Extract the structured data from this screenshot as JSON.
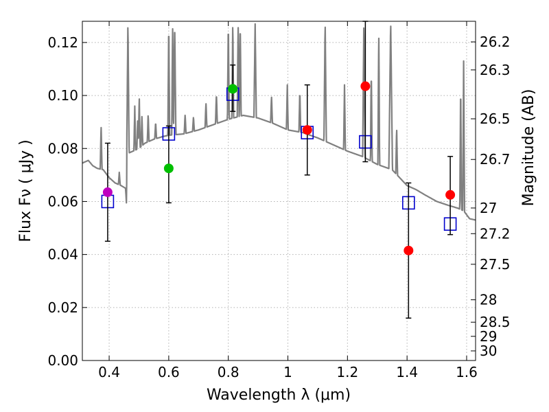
{
  "chart_data": {
    "type": "scatter",
    "xlabel": "Wavelength  λ (μm)",
    "ylabel": "Flux  Fν  ( μJy )",
    "ylabel_right": "Magnitude (AB)",
    "xlim": [
      0.31,
      1.63
    ],
    "ylim": [
      0.0,
      0.128
    ],
    "grid": true,
    "x_ticks": [
      {
        "value": 0.4,
        "label": "0.4"
      },
      {
        "value": 0.6,
        "label": "0.6"
      },
      {
        "value": 0.8,
        "label": "0.8"
      },
      {
        "value": 1.0,
        "label": "1"
      },
      {
        "value": 1.2,
        "label": "1.2"
      },
      {
        "value": 1.4,
        "label": "1.4"
      },
      {
        "value": 1.6,
        "label": "1.6"
      }
    ],
    "y_ticks": [
      {
        "value": 0.0,
        "label": "0.00"
      },
      {
        "value": 0.02,
        "label": "0.02"
      },
      {
        "value": 0.04,
        "label": "0.04"
      },
      {
        "value": 0.06,
        "label": "0.06"
      },
      {
        "value": 0.08,
        "label": "0.08"
      },
      {
        "value": 0.1,
        "label": "0.10"
      },
      {
        "value": 0.12,
        "label": "0.12"
      }
    ],
    "mag_ticks": [
      {
        "value": 26.2,
        "label": "26.2"
      },
      {
        "value": 26.3,
        "label": "26.3"
      },
      {
        "value": 26.5,
        "label": "26.5"
      },
      {
        "value": 26.7,
        "label": "26.7"
      },
      {
        "value": 27.0,
        "label": "27"
      },
      {
        "value": 27.2,
        "label": "27.2"
      },
      {
        "value": 27.5,
        "label": "27.5"
      },
      {
        "value": 28.0,
        "label": "28"
      },
      {
        "value": 28.5,
        "label": "28.5"
      },
      {
        "value": 29.0,
        "label": "29"
      },
      {
        "value": 30.0,
        "label": "30"
      }
    ],
    "observed": [
      {
        "x": 0.395,
        "y": 0.0635,
        "yerr_low": 0.045,
        "yerr_high": 0.082,
        "color": "#bf00bf"
      },
      {
        "x": 0.6,
        "y": 0.0725,
        "yerr_low": 0.0595,
        "yerr_high": 0.0885,
        "color": "#00bf00"
      },
      {
        "x": 0.815,
        "y": 0.1025,
        "yerr_low": 0.094,
        "yerr_high": 0.1115,
        "color": "#00bf00"
      },
      {
        "x": 1.065,
        "y": 0.087,
        "yerr_low": 0.07,
        "yerr_high": 0.104,
        "color": "#ff0000"
      },
      {
        "x": 1.26,
        "y": 0.1035,
        "yerr_low": 0.075,
        "yerr_high": 0.128,
        "color": "#ff0000"
      },
      {
        "x": 1.405,
        "y": 0.0415,
        "yerr_low": 0.016,
        "yerr_high": 0.067,
        "color": "#ff0000"
      },
      {
        "x": 1.545,
        "y": 0.0625,
        "yerr_low": 0.0475,
        "yerr_high": 0.077,
        "color": "#ff0000"
      }
    ],
    "model_points": [
      {
        "x": 0.395,
        "y": 0.06
      },
      {
        "x": 0.6,
        "y": 0.0855
      },
      {
        "x": 0.815,
        "y": 0.1005
      },
      {
        "x": 1.065,
        "y": 0.086
      },
      {
        "x": 1.26,
        "y": 0.0825
      },
      {
        "x": 1.405,
        "y": 0.0595
      },
      {
        "x": 1.545,
        "y": 0.0515
      }
    ],
    "sed_continuum": [
      [
        0.31,
        0.0745
      ],
      [
        0.33,
        0.0755
      ],
      [
        0.345,
        0.0735
      ],
      [
        0.36,
        0.0725
      ],
      [
        0.38,
        0.072
      ],
      [
        0.4,
        0.069
      ],
      [
        0.42,
        0.067
      ],
      [
        0.44,
        0.066
      ],
      [
        0.455,
        0.065
      ],
      [
        0.458,
        0.0595
      ],
      [
        0.46,
        0.078
      ],
      [
        0.48,
        0.079
      ],
      [
        0.5,
        0.08
      ],
      [
        0.52,
        0.082
      ],
      [
        0.55,
        0.0835
      ],
      [
        0.58,
        0.0845
      ],
      [
        0.6,
        0.085
      ],
      [
        0.65,
        0.0855
      ],
      [
        0.7,
        0.087
      ],
      [
        0.75,
        0.089
      ],
      [
        0.8,
        0.091
      ],
      [
        0.85,
        0.0925
      ],
      [
        0.9,
        0.0915
      ],
      [
        0.95,
        0.0895
      ],
      [
        1.0,
        0.087
      ],
      [
        1.05,
        0.086
      ],
      [
        1.1,
        0.084
      ],
      [
        1.15,
        0.0815
      ],
      [
        1.2,
        0.079
      ],
      [
        1.25,
        0.077
      ],
      [
        1.3,
        0.074
      ],
      [
        1.35,
        0.072
      ],
      [
        1.4,
        0.066
      ],
      [
        1.43,
        0.0645
      ],
      [
        1.46,
        0.0625
      ],
      [
        1.5,
        0.06
      ],
      [
        1.54,
        0.0585
      ],
      [
        1.57,
        0.0575
      ],
      [
        1.59,
        0.0565
      ],
      [
        1.61,
        0.0535
      ],
      [
        1.63,
        0.053
      ]
    ],
    "sed_lines": [
      {
        "x": 0.373,
        "peak": 0.089,
        "w": 0.003
      },
      {
        "x": 0.434,
        "peak": 0.071,
        "w": 0.003
      },
      {
        "x": 0.463,
        "peak": 0.128,
        "w": 0.004
      },
      {
        "x": 0.486,
        "peak": 0.096,
        "w": 0.003
      },
      {
        "x": 0.496,
        "peak": 0.092,
        "w": 0.003
      },
      {
        "x": 0.501,
        "peak": 0.1,
        "w": 0.003
      },
      {
        "x": 0.51,
        "peak": 0.092,
        "w": 0.003
      },
      {
        "x": 0.531,
        "peak": 0.093,
        "w": 0.003
      },
      {
        "x": 0.556,
        "peak": 0.09,
        "w": 0.003
      },
      {
        "x": 0.6,
        "peak": 0.128,
        "w": 0.003
      },
      {
        "x": 0.613,
        "peak": 0.128,
        "w": 0.003
      },
      {
        "x": 0.62,
        "peak": 0.128,
        "w": 0.004
      },
      {
        "x": 0.655,
        "peak": 0.093,
        "w": 0.003
      },
      {
        "x": 0.683,
        "peak": 0.092,
        "w": 0.003
      },
      {
        "x": 0.725,
        "peak": 0.0975,
        "w": 0.003
      },
      {
        "x": 0.76,
        "peak": 0.101,
        "w": 0.003
      },
      {
        "x": 0.8,
        "peak": 0.128,
        "w": 0.003
      },
      {
        "x": 0.815,
        "peak": 0.128,
        "w": 0.003
      },
      {
        "x": 0.833,
        "peak": 0.128,
        "w": 0.003
      },
      {
        "x": 0.84,
        "peak": 0.128,
        "w": 0.003
      },
      {
        "x": 0.89,
        "peak": 0.127,
        "w": 0.004
      },
      {
        "x": 0.945,
        "peak": 0.1,
        "w": 0.003
      },
      {
        "x": 0.998,
        "peak": 0.104,
        "w": 0.003
      },
      {
        "x": 1.04,
        "peak": 0.102,
        "w": 0.003
      },
      {
        "x": 1.125,
        "peak": 0.128,
        "w": 0.004
      },
      {
        "x": 1.19,
        "peak": 0.104,
        "w": 0.003
      },
      {
        "x": 1.255,
        "peak": 0.128,
        "w": 0.004
      },
      {
        "x": 1.28,
        "peak": 0.11,
        "w": 0.003
      },
      {
        "x": 1.305,
        "peak": 0.125,
        "w": 0.003
      },
      {
        "x": 1.345,
        "peak": 0.128,
        "w": 0.006
      },
      {
        "x": 1.365,
        "peak": 0.088,
        "w": 0.003
      },
      {
        "x": 1.58,
        "peak": 0.105,
        "w": 0.003
      },
      {
        "x": 1.59,
        "peak": 0.113,
        "w": 0.003
      }
    ]
  },
  "colors": {
    "model_line": "#808080",
    "model_box": "#0000cc",
    "errorbar": "#000000",
    "grid": "#b0b0b0"
  }
}
